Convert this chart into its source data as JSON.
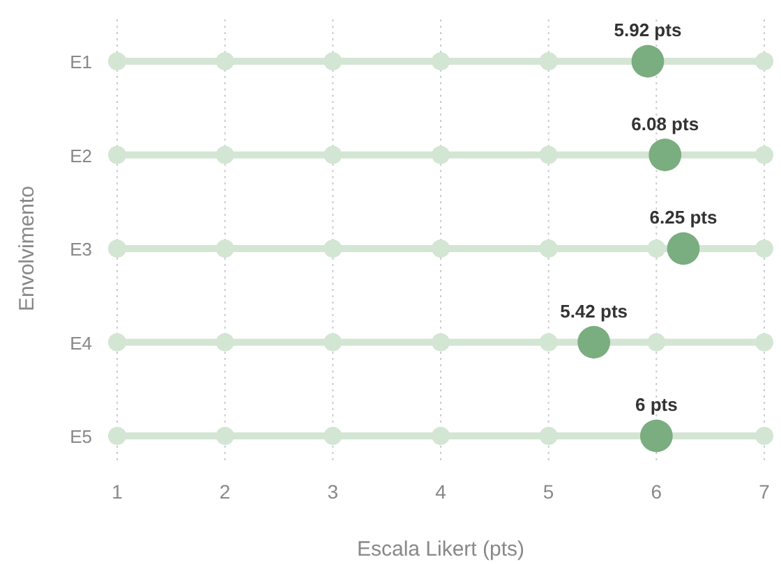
{
  "chart_data": {
    "type": "scatter",
    "orientation": "horizontal",
    "categories": [
      "E1",
      "E2",
      "E3",
      "E4",
      "E5"
    ],
    "series": [
      {
        "color": "#d3e5d3",
        "values": [
          1,
          1,
          1,
          1,
          1
        ]
      },
      {
        "color": "#d3e5d3",
        "values": [
          2,
          2,
          2,
          2,
          2
        ]
      },
      {
        "color": "#d3e5d3",
        "values": [
          3,
          3,
          3,
          3,
          3
        ]
      },
      {
        "color": "#d3e5d3",
        "values": [
          4,
          4,
          4,
          4,
          4
        ]
      },
      {
        "color": "#d3e5d3",
        "values": [
          5,
          5,
          5,
          5,
          5
        ]
      },
      {
        "color": "#d3e5d3",
        "values": [
          null,
          null,
          6,
          6,
          null
        ]
      },
      {
        "color": "#d3e5d3",
        "values": [
          7,
          7,
          7,
          7,
          7
        ]
      },
      {
        "color": "#7aad7f",
        "values": [
          5.92,
          6.08,
          6.25,
          5.42,
          6
        ],
        "value_labels": [
          "5.92 pts",
          "6.08 pts",
          "6.25 pts",
          "5.42 pts",
          "6 pts"
        ]
      }
    ],
    "xlim": [
      1,
      7
    ],
    "xticks": [
      1,
      2,
      3,
      4,
      5,
      6,
      7
    ],
    "xlabel": "Escala Likert (pts)",
    "ylabel": "Envolvimento",
    "grid": "x",
    "marker": "circle"
  }
}
